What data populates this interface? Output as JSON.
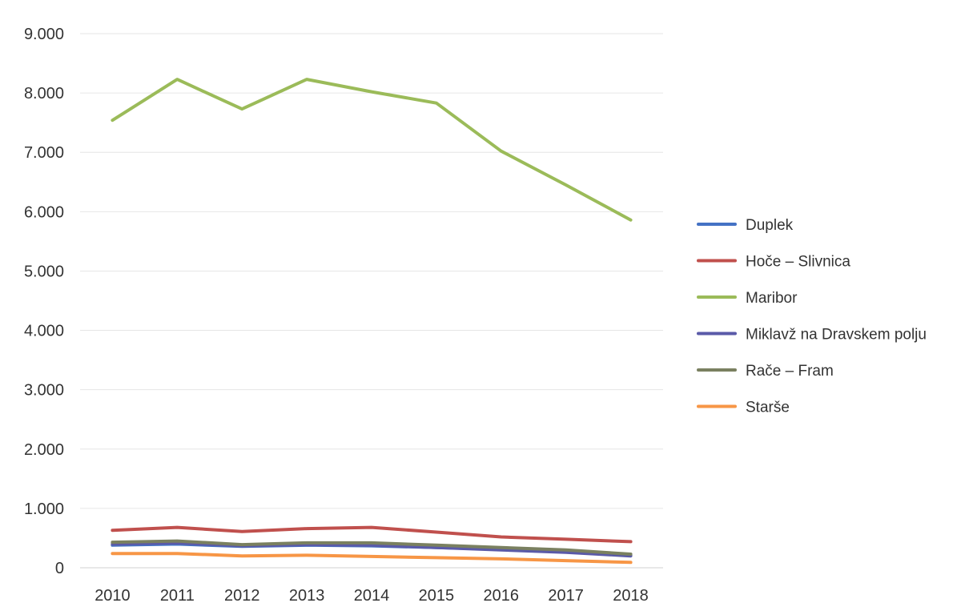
{
  "chart_data": {
    "type": "line",
    "title": "",
    "xlabel": "",
    "ylabel": "",
    "x": [
      "2010",
      "2011",
      "2012",
      "2013",
      "2014",
      "2015",
      "2016",
      "2017",
      "2018"
    ],
    "y_ticks": [
      "0",
      "1.000",
      "2.000",
      "3.000",
      "4.000",
      "5.000",
      "6.000",
      "7.000",
      "8.000",
      "9.000"
    ],
    "ylim": [
      0,
      9000
    ],
    "grid": true,
    "legend_position": "right",
    "series": [
      {
        "name": "Duplek",
        "color": "#4472c4",
        "values": [
          380,
          400,
          360,
          380,
          370,
          340,
          310,
          270,
          210
        ]
      },
      {
        "name": "Hoče – Slivnica",
        "color": "#c0504d",
        "values": [
          630,
          680,
          610,
          660,
          680,
          600,
          520,
          480,
          440
        ]
      },
      {
        "name": "Maribor",
        "color": "#9bbb59",
        "values": [
          7540,
          8230,
          7730,
          8230,
          8020,
          7830,
          7020,
          6450,
          5860
        ]
      },
      {
        "name": "Miklavž na Dravskem polju",
        "color": "#5a5aa8",
        "values": [
          400,
          420,
          370,
          390,
          380,
          340,
          300,
          260,
          200
        ]
      },
      {
        "name": "Rače – Fram",
        "color": "#7a8060",
        "values": [
          430,
          450,
          390,
          420,
          420,
          380,
          340,
          300,
          230
        ]
      },
      {
        "name": "Starše",
        "color": "#f79646",
        "values": [
          240,
          240,
          200,
          210,
          190,
          170,
          150,
          120,
          90
        ]
      }
    ]
  }
}
